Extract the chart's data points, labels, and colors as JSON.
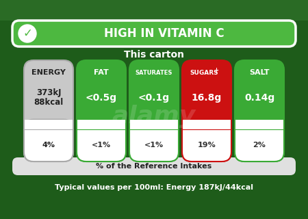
{
  "bg_color": "#1e5c1a",
  "vitamin_banner_color": "#4db840",
  "vitamin_text": "HIGH IN VITAMIN C",
  "vitamin_check": "✓",
  "this_carton_text": "This carton",
  "footer_bg": "#e0e0e0",
  "footer_text": "% of the Reference Intakes",
  "bottom_text": "Typical values per 100ml: Energy 187kJ/44kcal",
  "nutrients": [
    {
      "label": "ENERGY",
      "value1": "373kJ",
      "value2": "88kcal",
      "percent": "4%",
      "top_color": "#c8c8c8",
      "bot_color": "#ffffff",
      "label_color": "#222222",
      "value_color": "#222222",
      "percent_color": "#222222",
      "border_color": "#aaaaaa",
      "is_energy": true
    },
    {
      "label": "FAT",
      "value1": "<0.5g",
      "value2": "",
      "percent": "<1%",
      "top_color": "#3aaa35",
      "bot_color": "#ffffff",
      "label_color": "#ffffff",
      "value_color": "#ffffff",
      "percent_color": "#333333",
      "border_color": "#3aaa35",
      "is_energy": false
    },
    {
      "label": "SATURATES",
      "value1": "<0.1g",
      "value2": "",
      "percent": "<1%",
      "top_color": "#3aaa35",
      "bot_color": "#ffffff",
      "label_color": "#ffffff",
      "value_color": "#ffffff",
      "percent_color": "#333333",
      "border_color": "#3aaa35",
      "is_energy": false
    },
    {
      "label": "SUGARS",
      "label2": "+",
      "value1": "16.8g",
      "value2": "",
      "percent": "19%",
      "top_color": "#cc1111",
      "bot_color": "#ffffff",
      "label_color": "#ffffff",
      "value_color": "#ffffff",
      "percent_color": "#333333",
      "border_color": "#cc1111",
      "is_energy": false
    },
    {
      "label": "SALT",
      "value1": "0.14g",
      "value2": "",
      "percent": "2%",
      "top_color": "#3aaa35",
      "bot_color": "#ffffff",
      "label_color": "#ffffff",
      "value_color": "#ffffff",
      "percent_color": "#333333",
      "border_color": "#3aaa35",
      "is_energy": false
    }
  ]
}
